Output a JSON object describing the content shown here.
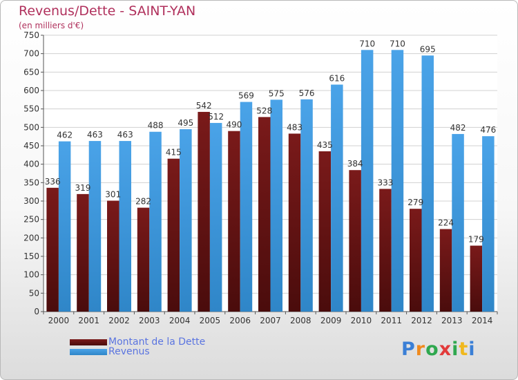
{
  "chart_data": {
    "type": "bar",
    "title": "Revenus/Dette - SAINT-YAN",
    "subtitle": "(en milliers d'€)",
    "categories": [
      "2000",
      "2001",
      "2002",
      "2003",
      "2004",
      "2005",
      "2006",
      "2007",
      "2008",
      "2009",
      "2010",
      "2011",
      "2012",
      "2013",
      "2014"
    ],
    "series": [
      {
        "name": "Montant de la Dette",
        "color": "#7a1a1a",
        "values": [
          336,
          319,
          301,
          282,
          415,
          542,
          490,
          528,
          483,
          435,
          384,
          333,
          279,
          224,
          179
        ]
      },
      {
        "name": "Revenus",
        "color": "#4aa3e8",
        "values": [
          462,
          463,
          463,
          488,
          495,
          512,
          569,
          575,
          576,
          616,
          710,
          710,
          695,
          482,
          476
        ]
      }
    ],
    "ylim": [
      0,
      750
    ],
    "yticks": [
      0,
      50,
      100,
      150,
      200,
      250,
      300,
      350,
      400,
      450,
      500,
      550,
      600,
      650,
      700,
      750
    ],
    "grid": true,
    "legend_position": "bottom-left"
  },
  "legend": {
    "items": [
      {
        "label": "Montant de la Dette",
        "color": "#7a1a1a"
      },
      {
        "label": "Revenus",
        "color": "#4aa3e8"
      }
    ]
  },
  "logo": {
    "letters": [
      "P",
      "r",
      "o",
      "x",
      "i",
      "t",
      "i"
    ],
    "colors": [
      "#3a7fd6",
      "#f08a1e",
      "#2fa84f",
      "#e23a3a",
      "#2fa84f",
      "#f0b81e",
      "#3a7fd6"
    ]
  }
}
